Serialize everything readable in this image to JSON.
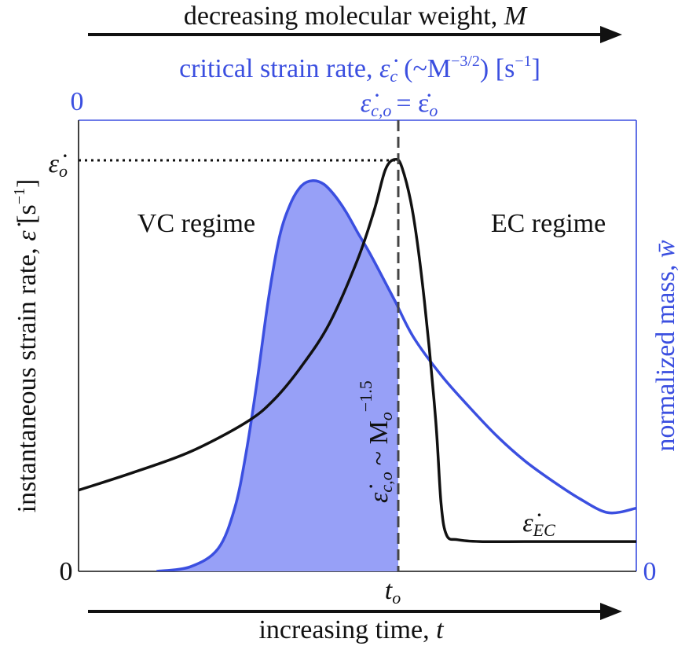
{
  "colors": {
    "strain_rate_line": "#111111",
    "mass_line": "#3b4fe0",
    "mass_fill": "#97a0f7",
    "axis_blue": "#3b4fe0",
    "axis_black": "#111111"
  },
  "top_arrow": {
    "label": "decreasing molecular weight,",
    "symbol": "M"
  },
  "critical_axis": {
    "label": "critical strain rate,",
    "symbol": "ε̇",
    "subscript": "c",
    "scaling": "(~M",
    "scaling_exp": "−3/2",
    "units_open": ") [s",
    "units_exp": "−1",
    "units_close": "]",
    "zero": "0"
  },
  "peak_annotation": {
    "lhs": "ε̇",
    "lhs_sub": "c,o",
    "rhs": "= ε̇",
    "rhs_sub": "o"
  },
  "left_axis": {
    "label": "instantaneous strain rate,",
    "symbol": "ε̇",
    "units": "[s",
    "units_exp": "−1",
    "units_close": "]",
    "peak_tick": "ε̇",
    "peak_tick_sub": "o",
    "zero": "0"
  },
  "right_axis": {
    "label": "normalized mass,",
    "symbol": "w̄",
    "zero": "0"
  },
  "regimes": {
    "left": "VC regime",
    "right": "EC regime"
  },
  "vertical_note": {
    "lhs": "ε̇",
    "lhs_sub": "c,o",
    "mid": "~ M",
    "mid_sub": "o",
    "exp": "−1.5"
  },
  "ec_label": {
    "symbol": "ε̇",
    "sub": "EC"
  },
  "bottom_axis": {
    "tick": "t",
    "tick_sub": "o"
  },
  "bottom_arrow": {
    "label": "increasing time,",
    "symbol": "t"
  },
  "chart_data": {
    "type": "line",
    "x_range": [
      0,
      1
    ],
    "y_range": [
      0,
      1
    ],
    "x_marker": 0.567,
    "series": [
      {
        "name": "instantaneous strain rate",
        "x": [
          0,
          0.1,
          0.2,
          0.3,
          0.35,
          0.4,
          0.45,
          0.5,
          0.53,
          0.55,
          0.567,
          0.58,
          0.6,
          0.62,
          0.64,
          0.65,
          0.66,
          0.68,
          0.72,
          0.8,
          0.9,
          1.0
        ],
        "y": [
          0.18,
          0.22,
          0.265,
          0.33,
          0.38,
          0.455,
          0.55,
          0.69,
          0.8,
          0.89,
          0.913,
          0.895,
          0.79,
          0.6,
          0.34,
          0.15,
          0.08,
          0.07,
          0.066,
          0.066,
          0.066,
          0.066
        ]
      },
      {
        "name": "normalized mass",
        "x": [
          0.14,
          0.2,
          0.25,
          0.28,
          0.3,
          0.32,
          0.34,
          0.36,
          0.38,
          0.4,
          0.42,
          0.44,
          0.46,
          0.48,
          0.5,
          0.52,
          0.54,
          0.567,
          0.6,
          0.65,
          0.7,
          0.75,
          0.8,
          0.85,
          0.9,
          0.95,
          1.0
        ],
        "y": [
          0,
          0.01,
          0.05,
          0.14,
          0.26,
          0.42,
          0.6,
          0.74,
          0.815,
          0.855,
          0.866,
          0.858,
          0.832,
          0.796,
          0.752,
          0.71,
          0.664,
          0.6,
          0.52,
          0.435,
          0.365,
          0.3,
          0.245,
          0.2,
          0.16,
          0.13,
          0.14
        ]
      }
    ]
  }
}
